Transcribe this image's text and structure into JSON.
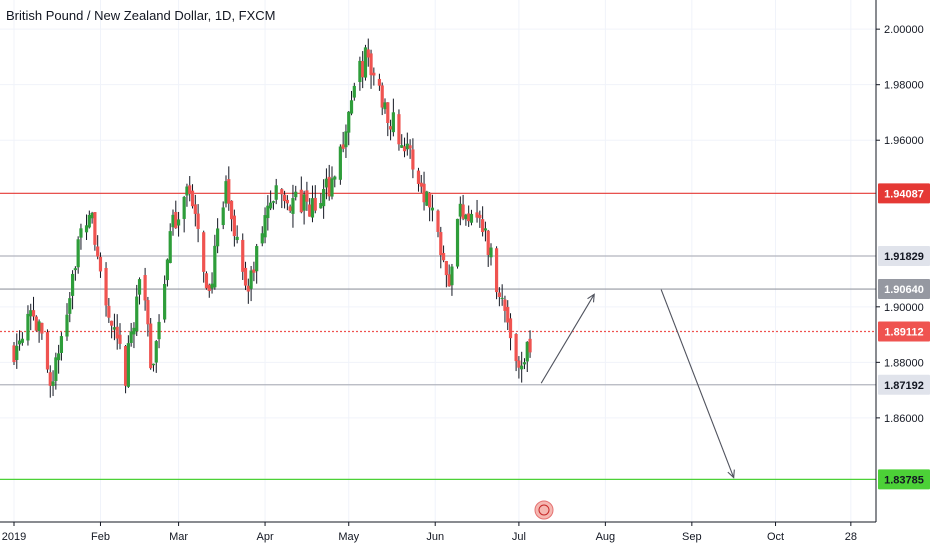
{
  "header": {
    "title": "British Pound / New Zealand Dollar, 1D, FXCM"
  },
  "chart_data": {
    "type": "candlestick",
    "title": "British Pound / New Zealand Dollar, 1D, FXCM",
    "ylim": [
      1.8225,
      2.0105
    ],
    "y_ticks": [
      "2.00000",
      "1.98000",
      "1.96000",
      "1.90000",
      "1.88000",
      "1.86000"
    ],
    "x_ticks": [
      {
        "label": "2019",
        "day": 0
      },
      {
        "label": "Feb",
        "day": 31
      },
      {
        "label": "Mar",
        "day": 59
      },
      {
        "label": "Apr",
        "day": 90
      },
      {
        "label": "May",
        "day": 120
      },
      {
        "label": "Jun",
        "day": 151
      },
      {
        "label": "Jul",
        "day": 181
      },
      {
        "label": "Aug",
        "day": 212
      },
      {
        "label": "Sep",
        "day": 243
      },
      {
        "label": "Oct",
        "day": 273
      },
      {
        "label": "28",
        "day": 300
      }
    ],
    "x_day_range": [
      0,
      304
    ],
    "anchor_path": [
      {
        "day": 0,
        "v": 1.885
      },
      {
        "day": 6,
        "v": 1.902
      },
      {
        "day": 14,
        "v": 1.872
      },
      {
        "day": 22,
        "v": 1.918
      },
      {
        "day": 27,
        "v": 1.935
      },
      {
        "day": 34,
        "v": 1.895
      },
      {
        "day": 40,
        "v": 1.875
      },
      {
        "day": 46,
        "v": 1.918
      },
      {
        "day": 49,
        "v": 1.875
      },
      {
        "day": 56,
        "v": 1.925
      },
      {
        "day": 62,
        "v": 1.945
      },
      {
        "day": 70,
        "v": 1.905
      },
      {
        "day": 76,
        "v": 1.942
      },
      {
        "day": 84,
        "v": 1.905
      },
      {
        "day": 92,
        "v": 1.94
      },
      {
        "day": 108,
        "v": 1.935
      },
      {
        "day": 116,
        "v": 1.95
      },
      {
        "day": 121,
        "v": 1.975
      },
      {
        "day": 126,
        "v": 1.99
      },
      {
        "day": 132,
        "v": 1.975
      },
      {
        "day": 140,
        "v": 1.958
      },
      {
        "day": 150,
        "v": 1.935
      },
      {
        "day": 156,
        "v": 1.912
      },
      {
        "day": 160,
        "v": 1.935
      },
      {
        "day": 166,
        "v": 1.935
      },
      {
        "day": 170,
        "v": 1.922
      },
      {
        "day": 175,
        "v": 1.902
      },
      {
        "day": 181,
        "v": 1.879
      },
      {
        "day": 186,
        "v": 1.889
      }
    ],
    "horizontal_levels": [
      {
        "value": 1.94087,
        "label": "1.94087",
        "color": "#e53935",
        "style": "solid",
        "badge_bg": "#e53935",
        "badge_text": "#ffffff"
      },
      {
        "value": 1.91829,
        "label": "1.91829",
        "color": "#b2b5be",
        "style": "solid",
        "badge_bg": "#e0e3eb",
        "badge_text": "#131722"
      },
      {
        "value": 1.9064,
        "label": "1.90640",
        "color": "#9598a1",
        "style": "solid",
        "badge_bg": "#9598a1",
        "badge_text": "#ffffff"
      },
      {
        "value": 1.89112,
        "label": "1.89112",
        "color": "#ef5350",
        "style": "dotted",
        "badge_bg": "#ef5350",
        "badge_text": "#ffffff"
      },
      {
        "value": 1.87192,
        "label": "1.87192",
        "color": "#b2b5be",
        "style": "solid",
        "badge_bg": "#e0e3eb",
        "badge_text": "#131722"
      },
      {
        "value": 1.83785,
        "label": "1.83785",
        "color": "#4cd137",
        "style": "solid",
        "badge_bg": "#4cd137",
        "badge_text": "#131722"
      }
    ],
    "projection_arrows": [
      {
        "from": {
          "day": 189,
          "v": 1.8725
        },
        "to": {
          "day": 208,
          "v": 1.9045
        }
      },
      {
        "from": {
          "day": 232,
          "v": 1.9062
        },
        "to": {
          "day": 258,
          "v": 1.8385
        }
      }
    ],
    "colors": {
      "bull": "#26a69a",
      "bull_body": "#2e9d3a",
      "bear": "#ef5350",
      "wick": "#131722",
      "grid": "#f0f3fa",
      "axis": "#131722"
    },
    "grid": true
  }
}
